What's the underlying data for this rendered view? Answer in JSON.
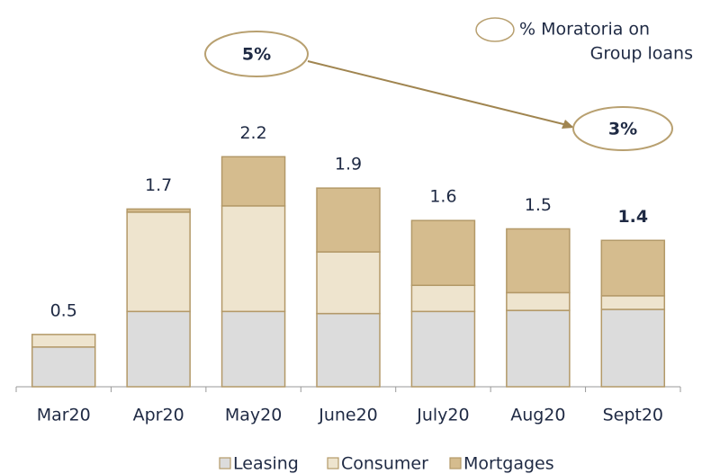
{
  "chart_data": {
    "type": "stacked_bar",
    "categories": [
      "Mar20",
      "Apr20",
      "May20",
      "June20",
      "July20",
      "Aug20",
      "Sept20"
    ],
    "series": [
      {
        "name": "Leasing",
        "color": "#dcdcdc",
        "values": [
          0.38,
          0.72,
          0.72,
          0.7,
          0.72,
          0.73,
          0.74
        ]
      },
      {
        "name": "Consumer",
        "color": "#eee4ce",
        "values": [
          0.12,
          0.95,
          1.01,
          0.59,
          0.25,
          0.17,
          0.13
        ]
      },
      {
        "name": "Mortgages",
        "color": "#d5bc8e",
        "values": [
          0,
          0.03,
          0.47,
          0.61,
          0.62,
          0.61,
          0.53
        ]
      }
    ],
    "totals": [
      0.5,
      1.7,
      2.2,
      1.9,
      1.6,
      1.5,
      1.4
    ],
    "ylim": [
      0,
      2.4
    ],
    "annotations": {
      "start": "5%",
      "end": "3%",
      "legend_line1": "% Moratoria on",
      "legend_line2": "Group loans"
    }
  }
}
